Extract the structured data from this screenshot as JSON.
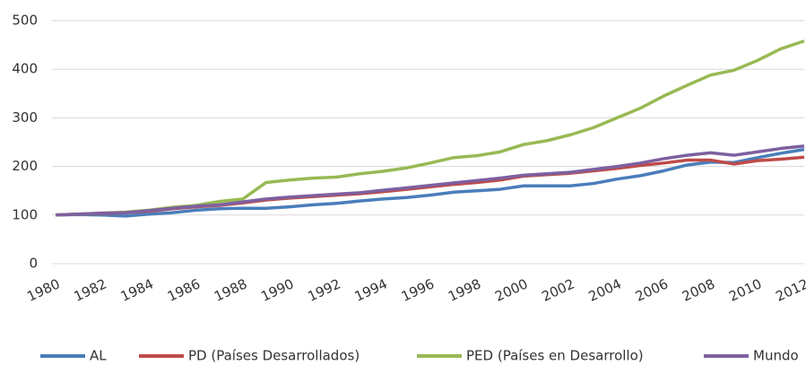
{
  "chart_data": {
    "type": "line",
    "x": [
      1980,
      1981,
      1982,
      1983,
      1984,
      1985,
      1986,
      1987,
      1988,
      1989,
      1990,
      1991,
      1992,
      1993,
      1994,
      1995,
      1996,
      1997,
      1998,
      1999,
      2000,
      2001,
      2002,
      2003,
      2004,
      2005,
      2006,
      2007,
      2008,
      2009,
      2010,
      2011,
      2012
    ],
    "xlim": [
      1980,
      2012
    ],
    "xticks": [
      1980,
      1982,
      1984,
      1986,
      1988,
      1990,
      1992,
      1994,
      1996,
      1998,
      2000,
      2002,
      2004,
      2006,
      2008,
      2010,
      2012
    ],
    "ylim": [
      0,
      500
    ],
    "yticks": [
      0,
      100,
      200,
      300,
      400,
      500
    ],
    "grid": true,
    "legend": "bottom",
    "series": [
      {
        "name": "AL",
        "color": "#4a7ebb",
        "values": [
          100,
          101,
          100,
          98,
          102,
          105,
          110,
          113,
          114,
          114,
          117,
          121,
          124,
          129,
          133,
          136,
          141,
          147,
          150,
          153,
          160,
          160,
          160,
          165,
          174,
          181,
          191,
          203,
          209,
          208,
          218,
          227,
          235
        ]
      },
      {
        "name": "PD (Países Desarrollados)",
        "color": "#be4b48",
        "values": [
          100,
          102,
          103,
          105,
          108,
          113,
          117,
          120,
          125,
          131,
          135,
          138,
          141,
          144,
          148,
          153,
          158,
          163,
          167,
          172,
          180,
          183,
          186,
          191,
          196,
          202,
          207,
          213,
          213,
          205,
          212,
          215,
          219
        ]
      },
      {
        "name": "PED (Países en Desarrollo)",
        "color": "#98b954",
        "values": [
          100,
          102,
          104,
          106,
          110,
          116,
          120,
          128,
          133,
          167,
          172,
          176,
          178,
          185,
          190,
          197,
          207,
          218,
          222,
          230,
          245,
          253,
          265,
          280,
          300,
          320,
          345,
          367,
          388,
          398,
          418,
          442,
          458
        ]
      },
      {
        "name": "Mundo",
        "color": "#7d60a0",
        "values": [
          100,
          102,
          104,
          105,
          109,
          114,
          118,
          121,
          127,
          133,
          137,
          140,
          143,
          146,
          151,
          156,
          161,
          166,
          171,
          176,
          182,
          185,
          188,
          194,
          200,
          207,
          216,
          223,
          228,
          223,
          230,
          237,
          242
        ]
      }
    ]
  }
}
